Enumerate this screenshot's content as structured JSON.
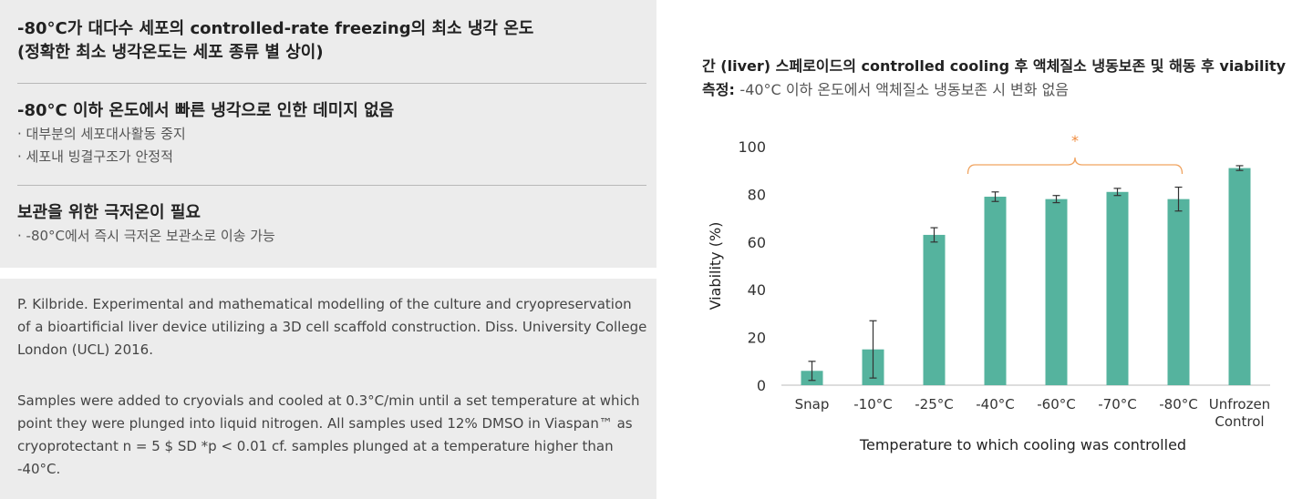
{
  "left": {
    "section1": {
      "heading_line1": "-80°C가 대다수 세포의 controlled-rate freezing의 최소 냉각 온도",
      "heading_line2": "(정확한 최소 냉각온도는 세포 종류 별 상이)"
    },
    "section2": {
      "heading": "-80°C 이하 온도에서 빠른 냉각으로 인한 데미지 없음",
      "bullets": [
        "· 대부분의 세포대사활동 중지",
        "· 세포내 빙결구조가 안정적"
      ]
    },
    "section3": {
      "heading": "보관을 위한 극저온이 필요",
      "bullets": [
        "· -80°C에서 즉시 극저온 보관소로 이송 가능"
      ]
    },
    "reference": "P. Kilbride. Experimental and mathematical modelling of the culture and cryopreservation of a bioartificial liver device utilizing a 3D cell scaffold construction. Diss. University College London (UCL) 2016.",
    "note": "Samples were added to cryovials and cooled at 0.3°C/min until a set temperature at which point they were plunged into liquid nitrogen. All samples used 12% DMSO in Viaspan™ as cryoprotectant n = 5 $ SD *p < 0.01 cf. samples plunged at a temperature higher than -40°C."
  },
  "chart_title": {
    "bold_part": "간 (liver) 스페로이드의 controlled cooling 후 액체질소 냉동보존 및 해동 후 viability 측정",
    "colon": ": ",
    "normal_part": "-40°C 이하 온도에서 액체질소 냉동보존 시 변화 없음"
  },
  "chart_data": {
    "type": "bar",
    "categories": [
      "Snap",
      "-10°C",
      "-25°C",
      "-40°C",
      "-60°C",
      "-70°C",
      "-80°C",
      "Unfrozen Control"
    ],
    "category_lines": [
      [
        "Snap"
      ],
      [
        "-10°C"
      ],
      [
        "-25°C"
      ],
      [
        "-40°C"
      ],
      [
        "-60°C"
      ],
      [
        "-70°C"
      ],
      [
        "-80°C"
      ],
      [
        "Unfrozen",
        "Control"
      ]
    ],
    "values": [
      6,
      15,
      63,
      79,
      78,
      81,
      78,
      91
    ],
    "error": [
      4,
      12,
      3,
      2,
      1.5,
      1.5,
      5,
      1
    ],
    "xlabel": "Temperature to which cooling was controlled",
    "ylabel": "Viability (%)",
    "ylim": [
      0,
      100
    ],
    "ytick_labels": [
      "0",
      "20",
      "40",
      "60",
      "80",
      "100"
    ],
    "significance": {
      "label": "*",
      "from_index": 3,
      "to_index": 6
    },
    "bar_color": "#55b39e",
    "bracket_color": "#f0a35f",
    "grid": false,
    "legend": "none"
  }
}
